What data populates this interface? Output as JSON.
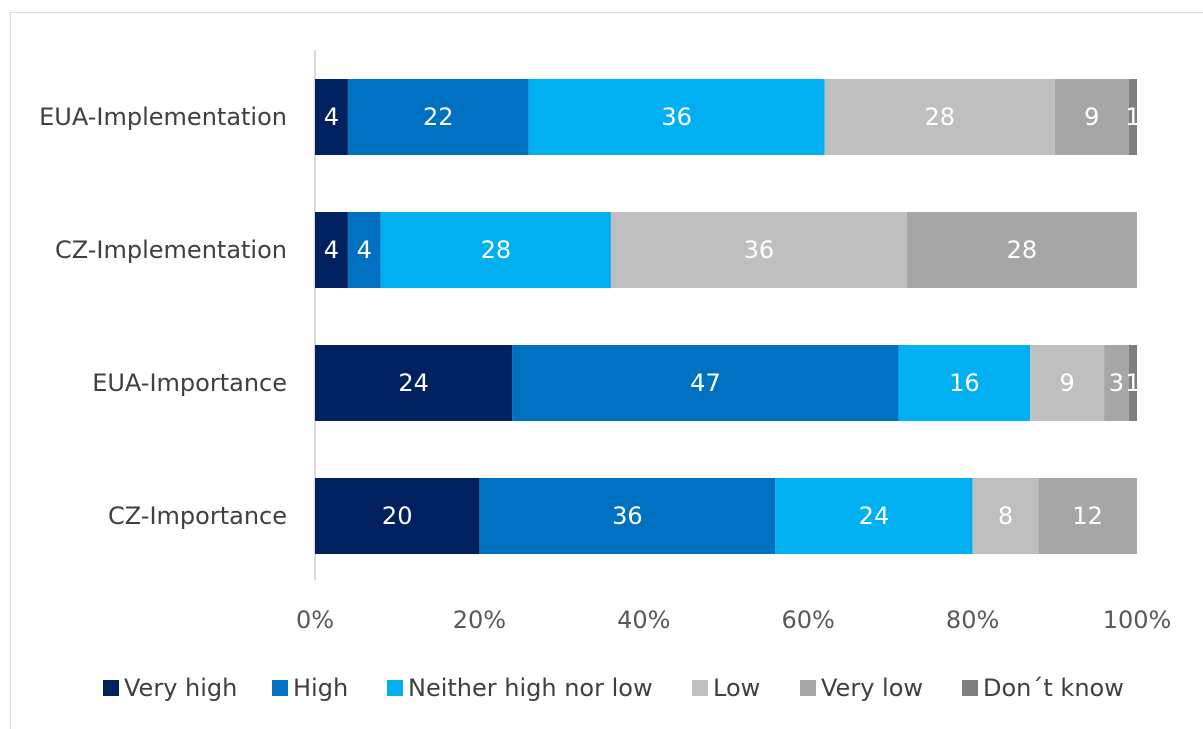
{
  "chart_data": {
    "type": "bar",
    "orientation": "horizontal",
    "stacked": "percent",
    "categories": [
      "EUA-Implementation",
      "CZ-Implementation",
      "EUA-Importance",
      "CZ-Importance"
    ],
    "series": [
      {
        "name": "Very high",
        "color": "#002060",
        "values": [
          4,
          4,
          24,
          20
        ]
      },
      {
        "name": "High",
        "color": "#0070c0",
        "values": [
          22,
          4,
          47,
          36
        ]
      },
      {
        "name": "Neither high nor low",
        "color": "#00b0f0",
        "values": [
          36,
          28,
          16,
          24
        ]
      },
      {
        "name": "Low",
        "color": "#bfbfbf",
        "values": [
          28,
          36,
          9,
          8
        ]
      },
      {
        "name": "Very low",
        "color": "#a6a6a6",
        "values": [
          9,
          28,
          3,
          12
        ]
      },
      {
        "name": "Don´t know",
        "color": "#7f7f7f",
        "values": [
          1,
          null,
          1,
          null
        ]
      }
    ],
    "x_ticks": [
      "0%",
      "20%",
      "40%",
      "60%",
      "80%",
      "100%"
    ],
    "xlim": [
      0,
      100
    ],
    "grid": false,
    "legend_position": "bottom"
  }
}
